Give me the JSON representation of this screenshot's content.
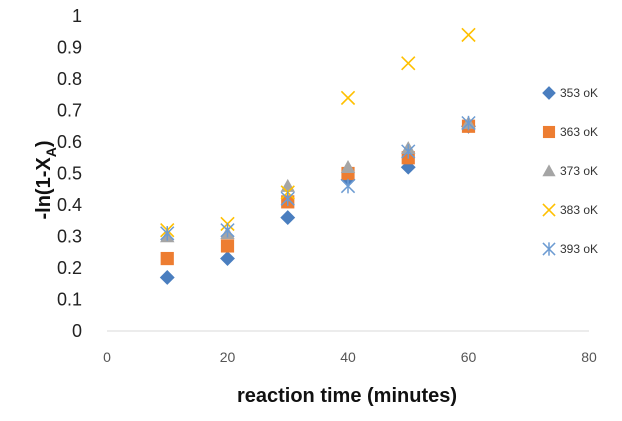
{
  "chart_data": {
    "type": "scatter",
    "title": "",
    "xlabel": "reaction time (minutes)",
    "ylabel_main": "-ln(1-X",
    "ylabel_sub": "A",
    "ylabel_end": ")",
    "xlim": [
      0,
      80
    ],
    "ylim": [
      0,
      1
    ],
    "xticks": [
      "0",
      "20",
      "40",
      "60",
      "80"
    ],
    "yticks": [
      "0",
      "0.1",
      "0.2",
      "0.3",
      "0.4",
      "0.5",
      "0.6",
      "0.7",
      "0.8",
      "0.9",
      "1"
    ],
    "grid": false,
    "legend_position": "right",
    "series": [
      {
        "name": "353 oK",
        "marker": "diamond",
        "color": "#4a7ebf",
        "points": [
          [
            10,
            0.17
          ],
          [
            20,
            0.23
          ],
          [
            30,
            0.36
          ],
          [
            40,
            0.48
          ],
          [
            50,
            0.52
          ],
          [
            60,
            0.65
          ]
        ]
      },
      {
        "name": "363 oK",
        "marker": "square",
        "color": "#ed7d31",
        "points": [
          [
            10,
            0.23
          ],
          [
            20,
            0.27
          ],
          [
            30,
            0.41
          ],
          [
            40,
            0.5
          ],
          [
            50,
            0.55
          ],
          [
            60,
            0.65
          ]
        ]
      },
      {
        "name": "373 oK",
        "marker": "triangle",
        "color": "#a5a5a5",
        "points": [
          [
            10,
            0.3
          ],
          [
            20,
            0.31
          ],
          [
            30,
            0.46
          ],
          [
            40,
            0.52
          ],
          [
            50,
            0.58
          ],
          [
            60,
            0.66
          ]
        ]
      },
      {
        "name": "383 oK",
        "marker": "x",
        "color": "#ffc000",
        "points": [
          [
            10,
            0.32
          ],
          [
            20,
            0.34
          ],
          [
            30,
            0.44
          ],
          [
            40,
            0.74
          ],
          [
            50,
            0.85
          ],
          [
            60,
            0.94
          ]
        ]
      },
      {
        "name": "393 oK",
        "marker": "star",
        "color": "#6c9bd2",
        "points": [
          [
            10,
            0.31
          ],
          [
            20,
            0.32
          ],
          [
            30,
            0.42
          ],
          [
            40,
            0.46
          ],
          [
            50,
            0.57
          ],
          [
            60,
            0.66
          ]
        ]
      }
    ]
  }
}
